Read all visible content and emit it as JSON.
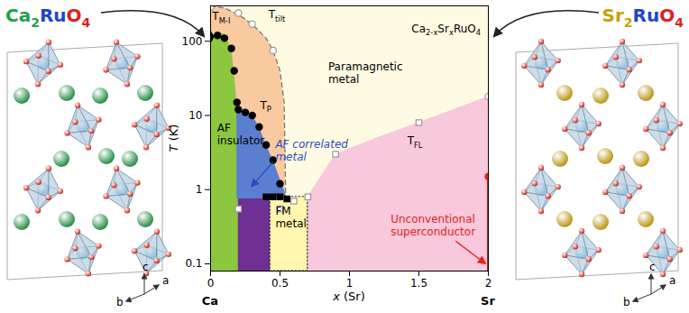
{
  "chart_data": {
    "type": "phase",
    "xlim": [
      0,
      2
    ],
    "xticks": [
      0,
      0.5,
      1,
      1.5,
      2
    ],
    "ylim": [
      0.08,
      300
    ],
    "yticks": [
      0.1,
      1,
      10,
      100
    ],
    "log": "y",
    "x_label": "x (Sr)",
    "y_label": "T (K)",
    "axis_end_labels": [
      "Ca",
      "Sr"
    ],
    "regions": [
      {
        "color": "#fffbe3",
        "x": [
          0,
          2
        ],
        "lower": [
          0.08,
          0.08
        ],
        "upper": [
          300,
          300
        ]
      },
      {
        "color": "#f9c9a0",
        "line_style": "dashed",
        "x": [
          0,
          0.1,
          0.2,
          0.3,
          0.4,
          0.45,
          0.5,
          0.53,
          0.55
        ],
        "lower": [
          0.08,
          0.08,
          0.08,
          0.08,
          0.08,
          0.08,
          0.08,
          0.08,
          0.08
        ],
        "upper": [
          300,
          280,
          230,
          170,
          110,
          75,
          40,
          15,
          0.08
        ]
      },
      {
        "color": "#f8c8dc",
        "x": [
          0.6,
          0.7,
          0.9,
          1.2,
          1.5,
          1.8,
          2
        ],
        "lower": [
          0.08,
          0.08,
          0.08,
          0.08,
          0.08,
          0.08,
          0.08
        ],
        "upper": [
          0.7,
          0.8,
          3,
          5,
          8,
          13,
          18
        ]
      },
      {
        "color": "#8dc63f",
        "x": [
          0,
          0.05,
          0.1,
          0.15,
          0.17,
          0.19,
          0.2,
          0.205
        ],
        "lower": [
          0.08,
          0.08,
          0.08,
          0.08,
          0.08,
          0.08,
          0.08,
          0.08
        ],
        "upper": [
          115,
          130,
          125,
          80,
          40,
          15,
          10,
          0.08
        ]
      },
      {
        "color": "#5b7fd0",
        "x": [
          0.19,
          0.25,
          0.3,
          0.35,
          0.4,
          0.45,
          0.5,
          0.53,
          0.55
        ],
        "lower": [
          0.75,
          0.75,
          0.75,
          0.75,
          0.75,
          0.75,
          0.75,
          0.75,
          0.75
        ],
        "upper": [
          13,
          11,
          10,
          7,
          4,
          2.5,
          1.4,
          1,
          0.75
        ]
      },
      {
        "color": "#6f2f93",
        "x": [
          0.2,
          0.43
        ],
        "lower": [
          0.08,
          0.08
        ],
        "upper": [
          0.75,
          0.75
        ]
      },
      {
        "color": "#fff6b0",
        "line_style": "dotted",
        "x": [
          0.43,
          0.7
        ],
        "lower": [
          0.08,
          0.08
        ],
        "upper": [
          0.8,
          0.8
        ]
      }
    ],
    "series": [
      {
        "marker": "circle",
        "color": "#000000",
        "x": [
          0.05,
          0.1,
          0.15,
          0.17,
          0.19,
          0.2,
          0.25,
          0.3,
          0.35,
          0.4,
          0.45,
          0.5
        ],
        "values": [
          120,
          110,
          80,
          40,
          15,
          12,
          11,
          10,
          7,
          4,
          2.5,
          1.2
        ]
      },
      {
        "marker": "diamond",
        "color": "#000000",
        "x": [
          0
        ],
        "values": [
          115
        ]
      },
      {
        "marker": "open circle",
        "color": "#999999",
        "x": [
          0,
          0.2,
          0.3,
          0.45,
          2
        ],
        "values": [
          290,
          240,
          170,
          75,
          18
        ]
      },
      {
        "marker": "square",
        "color": "#000000",
        "x": [
          0.4,
          0.45,
          0.5,
          0.55
        ],
        "values": [
          0.8,
          0.8,
          0.8,
          0.75
        ]
      },
      {
        "marker": "open square",
        "color": "#999999",
        "x": [
          0.2,
          0.5,
          0.6,
          0.7,
          0.9,
          1.5
        ],
        "values": [
          0.55,
          0.55,
          0.7,
          0.8,
          3,
          8
        ]
      },
      {
        "type": "line",
        "color": "#e3241b",
        "x": [
          2,
          2
        ],
        "values": [
          0.08,
          1.5
        ]
      },
      {
        "marker": "circle",
        "color": "#e3241b",
        "x": [
          2
        ],
        "values": [
          1.5
        ]
      }
    ],
    "annotations": [
      {
        "lines": [
          [
            "T",
            "M-I"
          ]
        ],
        "x": 0.015,
        "y": 190,
        "color": "#000000"
      },
      {
        "lines": [
          [
            "T",
            "tilt"
          ]
        ],
        "x": 0.42,
        "y": 200,
        "color": "#000000"
      },
      {
        "lines": [
          [
            "AF"
          ],
          [
            "insulator"
          ]
        ],
        "x": 0.05,
        "y": 6,
        "color": "#000000"
      },
      {
        "lines": [
          [
            "T",
            "P"
          ]
        ],
        "x": 0.36,
        "y": 12,
        "color": "#000000"
      },
      {
        "lines": [
          [
            "AF correlated"
          ],
          [
            "metal"
          ]
        ],
        "x": 0.47,
        "y": 3.6,
        "color": "#2b4fc0",
        "arrow_to": [
          0.3,
          1.1
        ]
      },
      {
        "lines": [
          [
            "Paramagnetic"
          ],
          [
            "metal"
          ]
        ],
        "x": 0.85,
        "y": 40,
        "color": "#000000"
      },
      {
        "lines": [
          [
            "T",
            "FL"
          ]
        ],
        "x": 1.42,
        "y": 4,
        "color": "#000000"
      },
      {
        "lines": [
          [
            "FM"
          ],
          [
            "metal"
          ]
        ],
        "x": 0.47,
        "y": 0.45,
        "color": "#000000"
      },
      {
        "lines": [
          [
            "Unconventional"
          ],
          [
            "superconductor"
          ]
        ],
        "x": 1.3,
        "y": 0.35,
        "color": "#e3241b",
        "arrow_to": [
          1.98,
          0.1
        ]
      },
      {
        "lines": [
          [
            "Ca",
            "2-x",
            "Sr",
            "x",
            "RuO",
            "4"
          ]
        ],
        "x": 1.45,
        "y": 130,
        "color": "#000000"
      }
    ]
  },
  "structures": [
    {
      "formula": [
        {
          "text": "Ca",
          "color": "#22a04b"
        },
        {
          "text": "2",
          "color": "#22a04b",
          "sub": true
        },
        {
          "text": "Ru",
          "color": "#1f45d0"
        },
        {
          "text": "O",
          "color": "#e0201b"
        },
        {
          "text": "4",
          "color": "#e0201b",
          "sub": true
        }
      ],
      "axes": [
        "c",
        "a",
        "b"
      ]
    },
    {
      "formula": [
        {
          "text": "Sr",
          "color": "#c9a200"
        },
        {
          "text": "2",
          "color": "#c9a200",
          "sub": true
        },
        {
          "text": "Ru",
          "color": "#1f45d0"
        },
        {
          "text": "O",
          "color": "#e0201b"
        },
        {
          "text": "4",
          "color": "#e0201b",
          "sub": true
        }
      ],
      "axes": [
        "c",
        "a",
        "b"
      ]
    }
  ]
}
